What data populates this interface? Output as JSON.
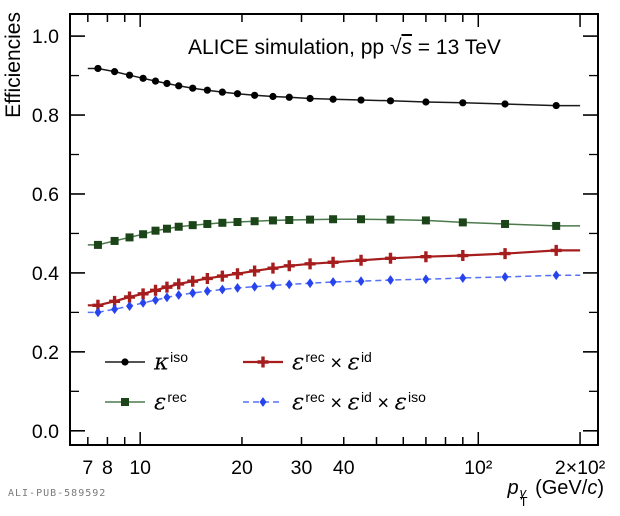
{
  "title": {
    "prefix": "ALICE simulation, pp ",
    "sqrt": "√",
    "sqrt_arg": "s",
    "suffix": " = 13 TeV"
  },
  "watermark": "ALI-PUB-589592",
  "ylabel": "Efficiencies",
  "xlabel": {
    "p": "p",
    "sup": "γ",
    "sub": "T",
    "unit_prefix": " (GeV/",
    "c": "c",
    "unit_suffix": ")"
  },
  "chart_data": {
    "type": "line",
    "title": "ALICE simulation, pp √s = 13 TeV",
    "xlabel": "p_T^γ (GeV/c)",
    "ylabel": "Efficiencies",
    "xscale": "log",
    "grid": false,
    "legend_position": "inside-bottom-left",
    "xlim": [
      6.2,
      226
    ],
    "ylim": [
      -0.036,
      1.056
    ],
    "x": [
      7.5,
      8.4,
      9.3,
      10.2,
      11.1,
      12.0,
      13.0,
      14.3,
      15.8,
      17.5,
      19.4,
      21.8,
      24.7,
      27.6,
      31.8,
      37.2,
      45,
      55,
      70,
      90,
      120,
      170
    ],
    "series": [
      {
        "name": "kappa_iso",
        "label_text": "κ^iso",
        "segments": [
          {
            "t": "κ",
            "i": true
          },
          {
            "t": "iso",
            "sup": true
          }
        ],
        "color": "#000000",
        "line_color": "#1a1a1a",
        "marker": "circle",
        "line": "solid",
        "values": [
          0.918,
          0.91,
          0.901,
          0.893,
          0.886,
          0.88,
          0.874,
          0.868,
          0.863,
          0.858,
          0.854,
          0.85,
          0.847,
          0.845,
          0.842,
          0.84,
          0.838,
          0.836,
          0.833,
          0.831,
          0.828,
          0.824
        ]
      },
      {
        "name": "eps_rec",
        "label_text": "ε^rec",
        "segments": [
          {
            "t": "ε",
            "i": true
          },
          {
            "t": "rec",
            "sup": true
          }
        ],
        "color": "#1b4518",
        "line_color": "#4d7a4d",
        "marker": "square",
        "line": "solid",
        "values": [
          0.471,
          0.481,
          0.49,
          0.498,
          0.507,
          0.512,
          0.517,
          0.521,
          0.524,
          0.527,
          0.529,
          0.531,
          0.533,
          0.534,
          0.535,
          0.536,
          0.536,
          0.535,
          0.533,
          0.528,
          0.524,
          0.519
        ]
      },
      {
        "name": "eps_rec_x_id",
        "label_text": "ε^rec × ε^id",
        "segments": [
          {
            "t": "ε",
            "i": true
          },
          {
            "t": "rec",
            "sup": true
          },
          {
            "t": " × "
          },
          {
            "t": "ε",
            "i": true
          },
          {
            "t": "id",
            "sup": true
          }
        ],
        "color": "#a61d1d",
        "line_color": "#a61d1d",
        "marker": "cross",
        "line": "solid",
        "values": [
          0.318,
          0.328,
          0.339,
          0.347,
          0.356,
          0.364,
          0.372,
          0.379,
          0.386,
          0.392,
          0.398,
          0.405,
          0.412,
          0.418,
          0.423,
          0.427,
          0.432,
          0.437,
          0.441,
          0.444,
          0.449,
          0.457
        ]
      },
      {
        "name": "eps_rec_x_id_x_iso",
        "label_text": "ε^rec × ε^id × ε^iso",
        "segments": [
          {
            "t": "ε",
            "i": true
          },
          {
            "t": "rec",
            "sup": true
          },
          {
            "t": " × "
          },
          {
            "t": "ε",
            "i": true
          },
          {
            "t": "id",
            "sup": true
          },
          {
            "t": " × "
          },
          {
            "t": "ε",
            "i": true
          },
          {
            "t": "iso",
            "sup": true
          }
        ],
        "color": "#2743ee",
        "line_color": "#5572f5",
        "marker": "diamond",
        "line": "dashed",
        "values": [
          0.3,
          0.308,
          0.316,
          0.324,
          0.331,
          0.338,
          0.344,
          0.349,
          0.354,
          0.358,
          0.362,
          0.365,
          0.368,
          0.371,
          0.374,
          0.377,
          0.379,
          0.382,
          0.384,
          0.387,
          0.39,
          0.394
        ]
      }
    ],
    "legend_rows": [
      [
        0,
        2
      ],
      [
        1,
        3
      ]
    ],
    "xticks": [
      {
        "v": 7,
        "label": "7",
        "major": false
      },
      {
        "v": 8,
        "label": "8",
        "major": false
      },
      {
        "v": 9,
        "label": "",
        "major": false
      },
      {
        "v": 10,
        "label": "10",
        "major": true
      },
      {
        "v": 20,
        "label": "20",
        "major": false
      },
      {
        "v": 30,
        "label": "30",
        "major": false
      },
      {
        "v": 40,
        "label": "40",
        "major": false
      },
      {
        "v": 50,
        "label": "",
        "major": false
      },
      {
        "v": 60,
        "label": "",
        "major": false
      },
      {
        "v": 70,
        "label": "",
        "major": false
      },
      {
        "v": 80,
        "label": "",
        "major": false
      },
      {
        "v": 90,
        "label": "",
        "major": false
      },
      {
        "v": 100,
        "label": "10²",
        "major": true
      },
      {
        "v": 200,
        "label": "2×10²",
        "major": true
      }
    ],
    "yticks": [
      {
        "v": 0.0,
        "label": "0.0"
      },
      {
        "v": 0.2,
        "label": "0.2"
      },
      {
        "v": 0.4,
        "label": "0.4"
      },
      {
        "v": 0.6,
        "label": "0.6"
      },
      {
        "v": 0.8,
        "label": "0.8"
      },
      {
        "v": 1.0,
        "label": "1.0"
      }
    ],
    "yticks_minor": [
      0.1,
      0.3,
      0.5,
      0.7,
      0.9
    ],
    "frame_color": "#000000"
  }
}
